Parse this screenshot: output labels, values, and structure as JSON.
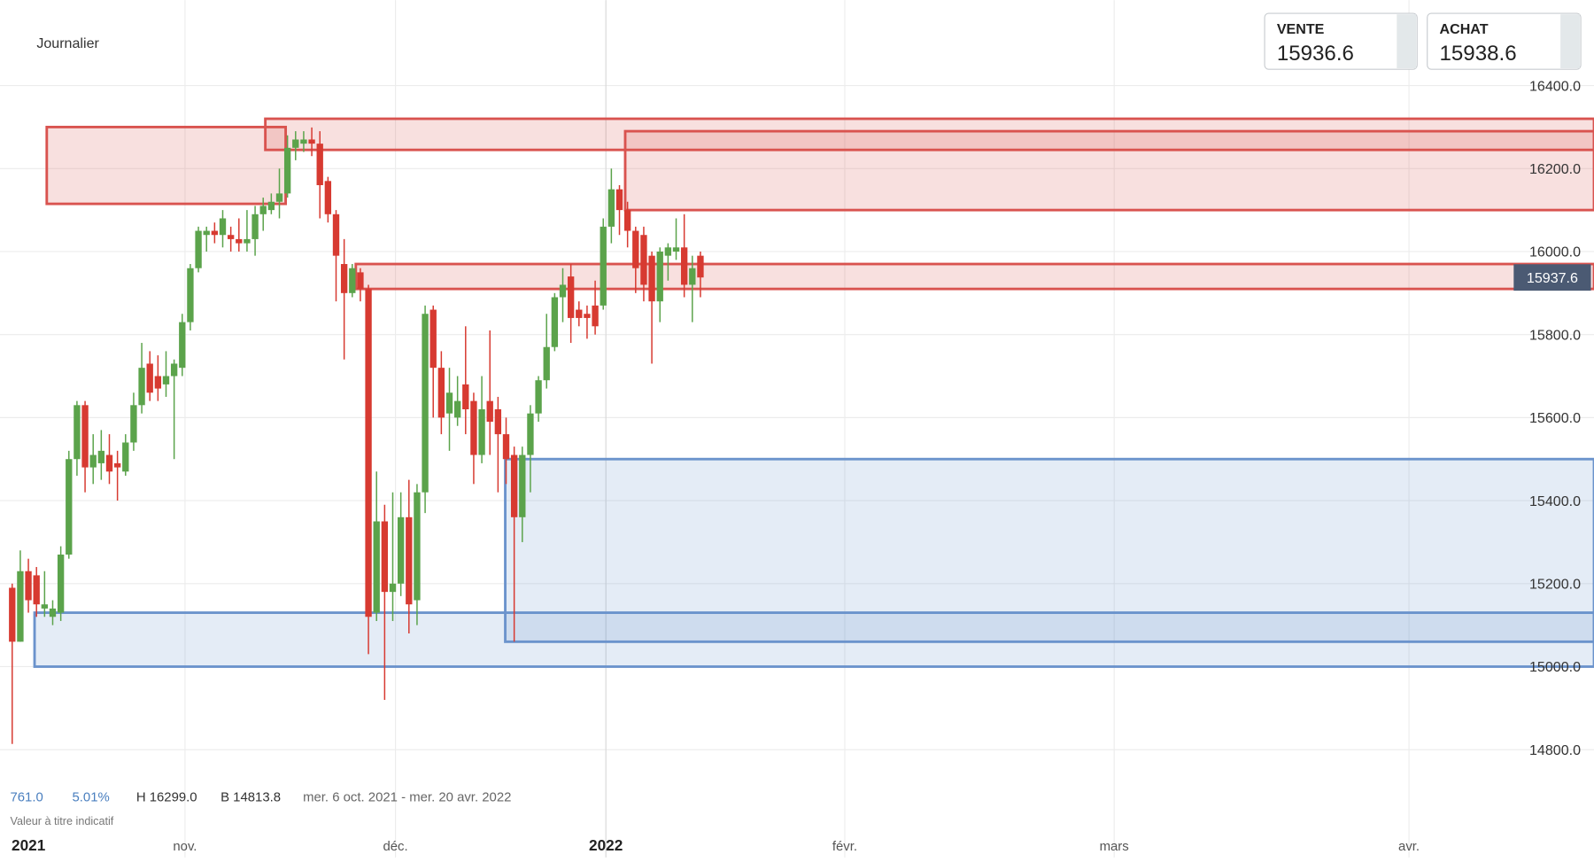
{
  "chart_data": {
    "type": "candlestick",
    "title": "Journalier",
    "sell_label": "VENTE",
    "sell_price": 15936.6,
    "buy_label": "ACHAT",
    "buy_price": 15938.6,
    "last_price": 15937.6,
    "stats": [
      "761.0",
      "5.01%",
      "H 16299.0",
      "B 14813.8",
      "mer. 6 oct. 2021 - mer. 20 avr. 2022"
    ],
    "note": "Valeur à titre indicatif",
    "x_labels": [
      "2021",
      "nov.",
      "déc.",
      "2022",
      "févr.",
      "mars",
      "avr."
    ],
    "ylim": [
      14800,
      16400
    ],
    "yticks": [
      {
        "value": 14800,
        "label": "14800.0"
      },
      {
        "value": 15000,
        "label": "15000.0"
      },
      {
        "value": 15200,
        "label": "15200.0"
      },
      {
        "value": 15400,
        "label": "15400.0"
      },
      {
        "value": 15600,
        "label": "15600.0"
      },
      {
        "value": 15800,
        "label": "15800.0"
      },
      {
        "value": 16000,
        "label": "16000.0"
      },
      {
        "value": 16200,
        "label": "16200.0"
      },
      {
        "value": 16400,
        "label": "16400.0"
      }
    ],
    "grid": true,
    "up_color": "#5ba34b",
    "down_color": "#d73a31",
    "open": [
      15190,
      15060,
      15230,
      15220,
      15140,
      15120,
      15130,
      15270,
      15500,
      15630,
      15480,
      15490,
      15510,
      15490,
      15470,
      15540,
      15630,
      15730,
      15700,
      15680,
      15700,
      15720,
      15830,
      15960,
      16040,
      16050,
      16040,
      16040,
      16030,
      16020,
      16030,
      16090,
      16100,
      16120,
      16140,
      16250,
      16260,
      16270,
      16260,
      16170,
      16090,
      15970,
      15900,
      15950,
      15910,
      15130,
      15350,
      15180,
      15200,
      15360,
      15160,
      15420,
      15860,
      15720,
      15610,
      15600,
      15680,
      15640,
      15510,
      15640,
      15620,
      15560,
      15510,
      15360,
      15510,
      15610,
      15690,
      15770,
      15890,
      15940,
      15860,
      15850,
      15870,
      15870,
      16060,
      16150,
      16100,
      16050,
      16040,
      15990,
      15880,
      15990,
      16000,
      16010,
      15920,
      15990
    ],
    "high": [
      15200,
      15280,
      15260,
      15240,
      15230,
      15160,
      15290,
      15520,
      15640,
      15640,
      15560,
      15570,
      15560,
      15520,
      15560,
      15660,
      15780,
      15760,
      15750,
      15760,
      15740,
      15850,
      15970,
      16060,
      16060,
      16070,
      16100,
      16060,
      16080,
      16100,
      16110,
      16130,
      16140,
      16200,
      16280,
      16290,
      16290,
      16299,
      16290,
      16180,
      16100,
      16030,
      15970,
      15960,
      15920,
      15470,
      15390,
      15420,
      15420,
      15450,
      15440,
      15870,
      15870,
      15760,
      15720,
      15700,
      15820,
      15660,
      15700,
      15810,
      15650,
      15600,
      15530,
      15530,
      15630,
      15700,
      15850,
      15900,
      15960,
      15970,
      15880,
      15870,
      15930,
      16080,
      16200,
      16160,
      16120,
      16060,
      16060,
      16000,
      16010,
      16020,
      16080,
      16090,
      15990,
      16000
    ],
    "low": [
      14813.8,
      15060,
      15130,
      15120,
      15120,
      15100,
      15110,
      15260,
      15460,
      15420,
      15440,
      15450,
      15440,
      15400,
      15460,
      15520,
      15610,
      15640,
      15640,
      15650,
      15500,
      15700,
      15810,
      15950,
      16000,
      16020,
      16010,
      16000,
      16000,
      16000,
      15990,
      16050,
      16090,
      16080,
      16130,
      16220,
      16240,
      16230,
      16080,
      16070,
      15880,
      15740,
      15890,
      15880,
      15030,
      15110,
      14920,
      15110,
      15170,
      15080,
      15100,
      15370,
      15600,
      15560,
      15520,
      15580,
      15560,
      15440,
      15490,
      15510,
      15420,
      15440,
      15060,
      15300,
      15420,
      15590,
      15670,
      15760,
      15830,
      15780,
      15820,
      15790,
      15800,
      15860,
      16020,
      16040,
      16010,
      15900,
      15880,
      15730,
      15830,
      15930,
      15980,
      15890,
      15830,
      15890
    ],
    "close": [
      15060,
      15230,
      15160,
      15150,
      15150,
      15140,
      15270,
      15500,
      15630,
      15480,
      15510,
      15520,
      15470,
      15480,
      15540,
      15630,
      15720,
      15660,
      15670,
      15700,
      15730,
      15830,
      15960,
      16050,
      16050,
      16040,
      16080,
      16030,
      16020,
      16030,
      16090,
      16110,
      16120,
      16140,
      16250,
      16270,
      16270,
      16260,
      16160,
      16090,
      15990,
      15900,
      15960,
      15910,
      15120,
      15350,
      15180,
      15200,
      15360,
      15150,
      15420,
      15850,
      15720,
      15600,
      15660,
      15640,
      15620,
      15510,
      15620,
      15590,
      15560,
      15500,
      15360,
      15510,
      15610,
      15690,
      15770,
      15890,
      15920,
      15840,
      15840,
      15840,
      15820,
      16060,
      16150,
      16100,
      16050,
      15960,
      15920,
      15880,
      16000,
      16010,
      16010,
      15920,
      15960,
      15937.6
    ],
    "zones": [
      {
        "low": 15000,
        "high": 15130,
        "color": "#6b93cc"
      },
      {
        "low": 15060,
        "high": 15500,
        "color": "#6b93cc"
      },
      {
        "low": 16115,
        "high": 16300,
        "color": "#d9534f"
      },
      {
        "low": 16245,
        "high": 16320,
        "color": "#d9534f"
      },
      {
        "low": 16100,
        "high": 16290,
        "color": "#d9534f"
      },
      {
        "low": 15910,
        "high": 15970,
        "color": "#d9534f"
      }
    ]
  }
}
